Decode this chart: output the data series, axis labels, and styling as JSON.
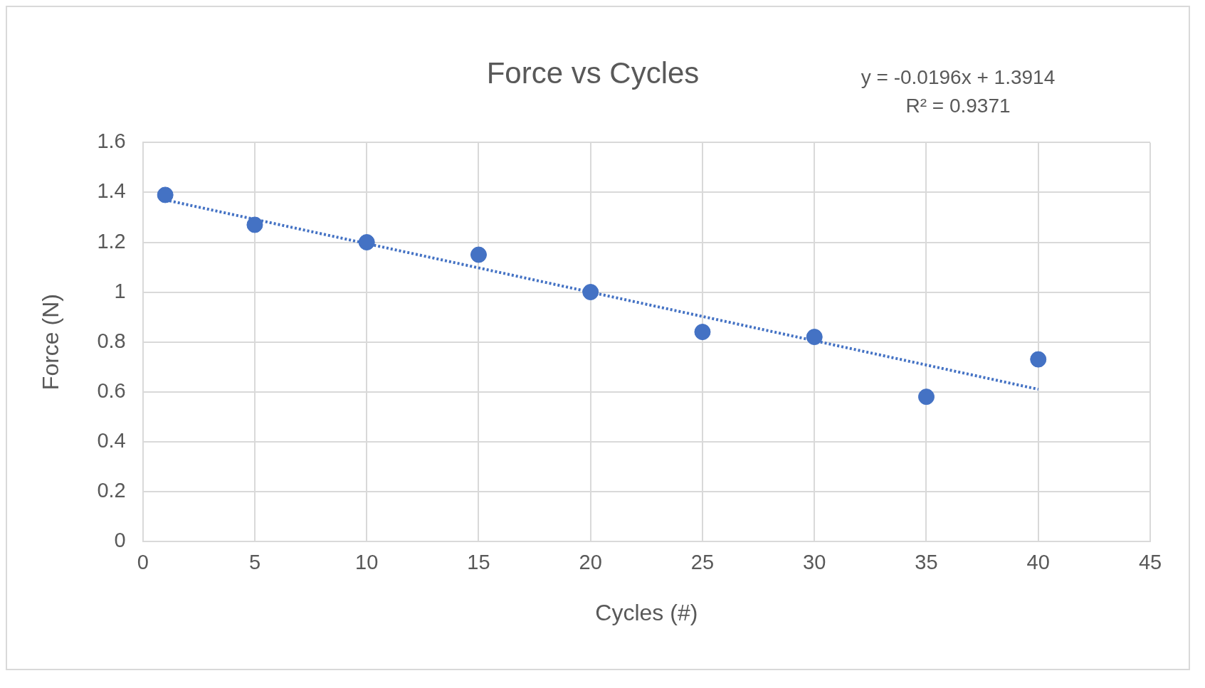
{
  "chart_data": {
    "type": "scatter",
    "title": "Force vs Cycles",
    "xlabel": "Cycles (#)",
    "ylabel": "Force (N)",
    "xlim": [
      0,
      45
    ],
    "xticks": [
      0,
      5,
      10,
      15,
      20,
      25,
      30,
      35,
      40,
      45
    ],
    "ylim": [
      0,
      1.6
    ],
    "yticks": [
      0,
      0.2,
      0.4,
      0.6,
      0.8,
      1,
      1.2,
      1.4,
      1.6
    ],
    "grid": true,
    "series": [
      {
        "type": "scatter",
        "color": "#4472c4",
        "marker": "circle",
        "x": [
          1,
          5,
          10,
          15,
          20,
          25,
          30,
          35,
          40
        ],
        "values": [
          1.39,
          1.27,
          1.2,
          1.15,
          1.0,
          0.84,
          0.82,
          0.58,
          0.73
        ]
      },
      {
        "type": "line",
        "color": "#4472c4",
        "line_style": "dotted",
        "marker": "none",
        "x": [
          1,
          40
        ],
        "values": [
          1.37,
          0.61
        ]
      }
    ],
    "annotations": [
      "y = -0.0196x + 1.3914",
      "R² = 0.9371"
    ]
  }
}
